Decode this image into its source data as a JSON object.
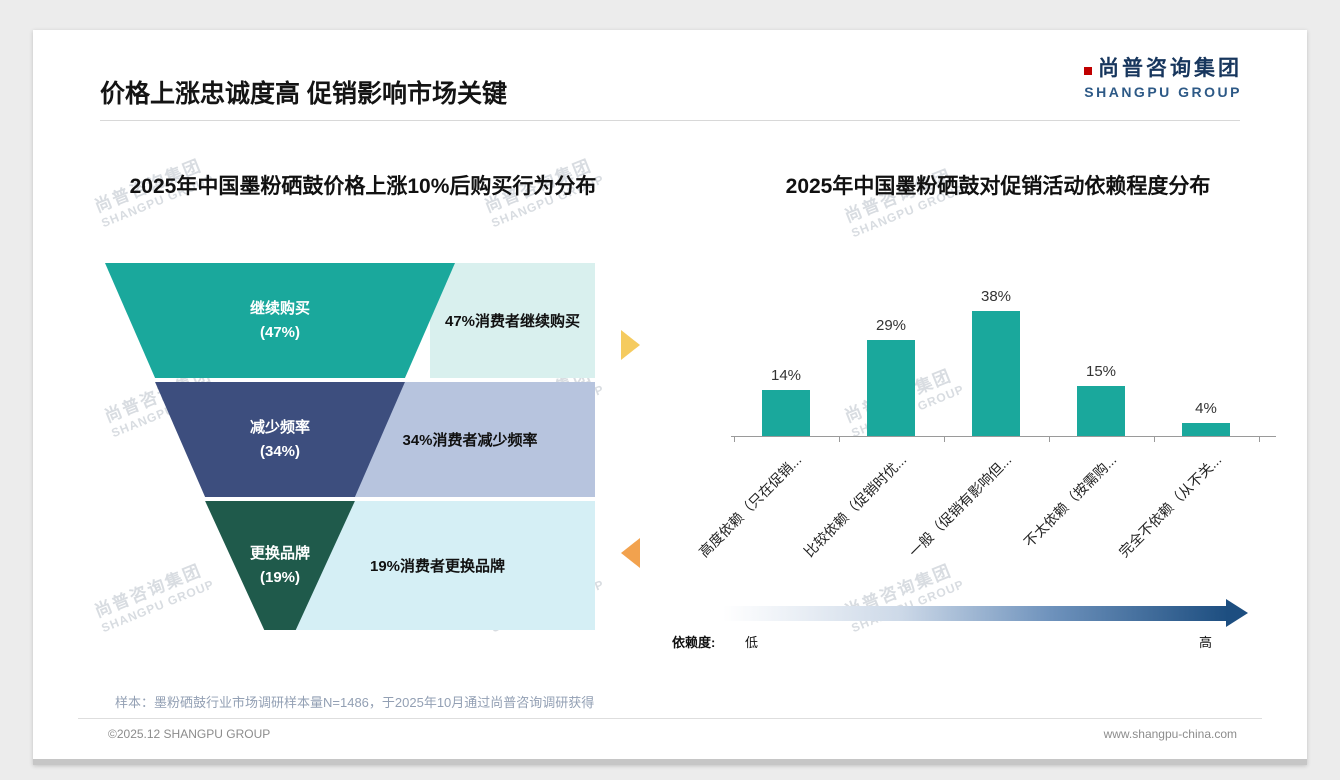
{
  "page": {
    "header_title": "价格上涨忠诚度高 促销影响市场关键",
    "logo_cn": "尚普咨询集团",
    "logo_en": "SHANGPU GROUP",
    "watermark_cn": "尚普咨询集团",
    "watermark_en": "SHANGPU GROUP",
    "sample_note": "样本：墨粉硒鼓行业市场调研样本量N=1486，于2025年10月通过尚普咨询调研获得",
    "copyright": "©2025.12 SHANGPU GROUP",
    "website": "www.shangpu-china.com"
  },
  "colors": {
    "teal": "#1aa89c",
    "navy": "#3d4e7e",
    "dark_green": "#1f5a4b",
    "light_teal": "#d9f0ee",
    "light_blue": "#b7c4de",
    "light_cyan": "#d5eff5",
    "logo_navy": "#17365d",
    "arrow_yellow": "#f5cb5f",
    "arrow_orange": "#f2a24e",
    "gradient_dark_blue": "#1d4e80"
  },
  "chart_data": [
    {
      "type": "funnel",
      "title": "2025年中国墨粉硒鼓价格上涨10%后购买行为分布",
      "categories": [
        "继续购买",
        "减少频率",
        "更换品牌"
      ],
      "values": [
        47,
        34,
        19
      ],
      "value_labels": [
        "(47%)",
        "(34%)",
        "(19%)"
      ],
      "annotations": [
        "47%消费者继续购买",
        "34%消费者减少频率",
        "19%消费者更换品牌"
      ],
      "segment_colors": [
        "#1aa89c",
        "#3d4e7e",
        "#1f5a4b"
      ],
      "annotation_bg": [
        "#d9f0ee",
        "#b7c4de",
        "#d5eff5"
      ]
    },
    {
      "type": "bar",
      "title": "2025年中国墨粉硒鼓对促销活动依赖程度分布",
      "categories": [
        "高度依赖（只在促销...",
        "比较依赖（促销时优...",
        "一般（促销有影响但...",
        "不太依赖（按需购...",
        "完全不依赖（从不关..."
      ],
      "values": [
        14,
        29,
        38,
        15,
        4
      ],
      "value_labels": [
        "14%",
        "29%",
        "38%",
        "15%",
        "4%"
      ],
      "ylim": [
        0,
        40
      ],
      "bar_color": "#1aa89c",
      "grid": false,
      "axis_legend": {
        "label": "依赖度:",
        "low": "低",
        "high": "高"
      }
    }
  ]
}
